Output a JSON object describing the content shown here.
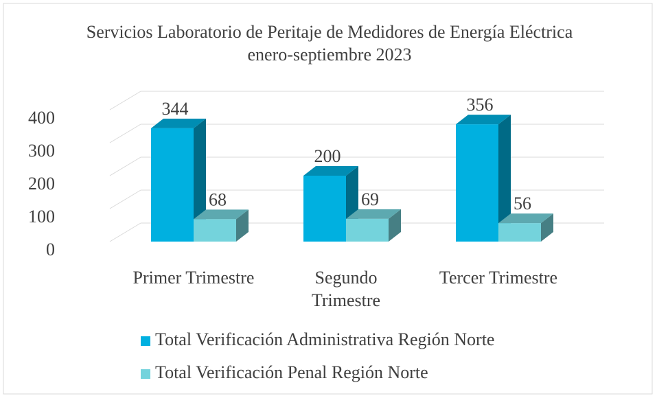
{
  "chart_data": {
    "type": "bar3d",
    "title": "Servicios Laboratorio de Peritaje de Medidores de Energía Eléctrica enero-septiembre 2023",
    "categories": [
      "Primer Trimestre",
      "Segundo Trimestre",
      "Tercer Trimestre"
    ],
    "series": [
      {
        "name": "Total Verificación Administrativa Región Norte",
        "color": "#00b0e0",
        "values": [
          344,
          200,
          356
        ]
      },
      {
        "name": "Total Verificación Penal Región Norte",
        "color": "#74d3dc",
        "values": [
          68,
          69,
          56
        ]
      }
    ],
    "ylim": [
      0,
      400
    ],
    "yticks": [
      0,
      100,
      200,
      300,
      400
    ],
    "grid": true,
    "legend": "bottom"
  }
}
